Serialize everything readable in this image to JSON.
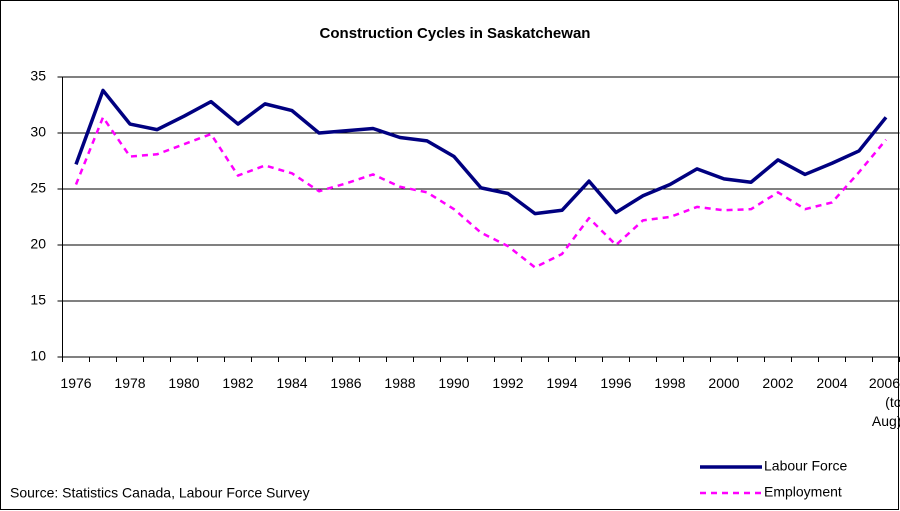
{
  "chart_data": {
    "type": "line",
    "title": "Construction Cycles in Saskatchewan",
    "source": "Source:  Statistics Canada, Labour Force Survey",
    "categories": [
      "1976",
      null,
      "1978",
      null,
      "1980",
      null,
      "1982",
      null,
      "1984",
      null,
      "1986",
      null,
      "1988",
      null,
      "1990",
      null,
      "1992",
      null,
      "1994",
      null,
      "1996",
      null,
      "1998",
      null,
      "2000",
      null,
      "2002",
      null,
      "2004",
      null,
      "2006 (to Aug)"
    ],
    "series": [
      {
        "name": "Labour Force",
        "color": "#000080",
        "style": "solid",
        "values": [
          27.2,
          33.8,
          30.8,
          30.3,
          31.5,
          32.8,
          30.8,
          32.6,
          32.0,
          30.0,
          30.2,
          30.4,
          29.6,
          29.3,
          27.9,
          25.1,
          24.6,
          22.8,
          23.1,
          25.7,
          22.9,
          24.4,
          25.4,
          26.8,
          25.9,
          25.6,
          27.6,
          26.3,
          27.3,
          28.4,
          31.4
        ]
      },
      {
        "name": "Employment",
        "color": "#ff00ff",
        "style": "dashed",
        "values": [
          25.4,
          31.4,
          27.9,
          28.1,
          29.0,
          29.9,
          26.2,
          27.1,
          26.4,
          24.8,
          25.5,
          26.3,
          25.2,
          24.7,
          23.2,
          21.1,
          19.9,
          18.0,
          19.2,
          22.4,
          20.0,
          22.2,
          22.5,
          23.4,
          23.1,
          23.2,
          24.7,
          23.2,
          23.8,
          26.5,
          29.4
        ]
      }
    ],
    "ylim": [
      10,
      35
    ],
    "yticks": [
      10,
      15,
      20,
      25,
      30,
      35
    ],
    "grid": true
  }
}
